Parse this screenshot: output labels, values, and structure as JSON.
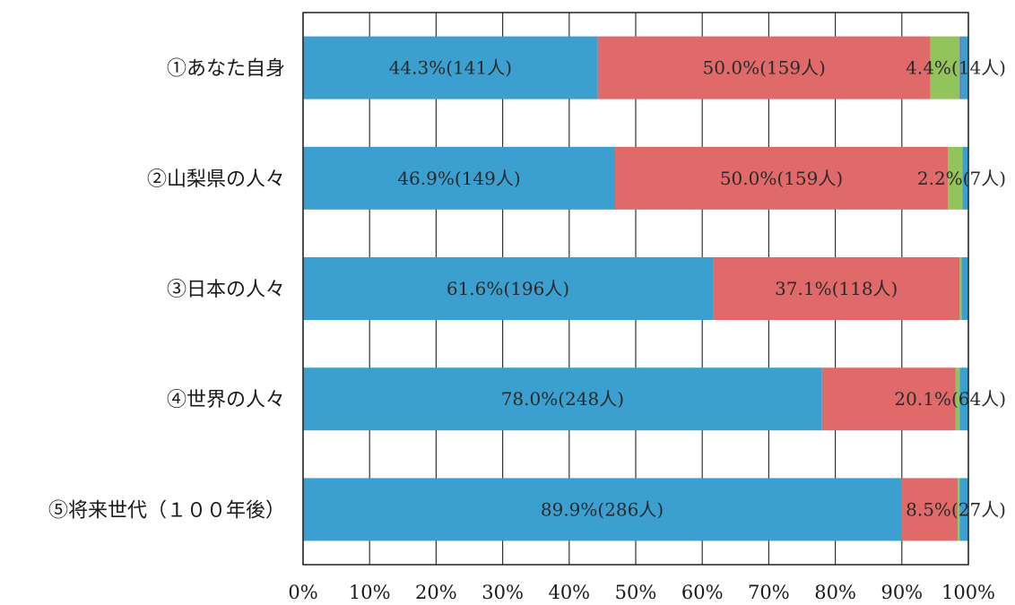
{
  "chart_data": {
    "type": "bar",
    "orientation": "horizontal",
    "stacked": "percent",
    "categories": [
      "①あなた自身",
      "②山梨県の人々",
      "③日本の人々",
      "④世界の人々",
      "⑤将来世代（１００年後）"
    ],
    "series": [
      {
        "color": "#3b9fd0",
        "values": [
          44.3,
          46.9,
          61.6,
          78.0,
          89.9
        ]
      },
      {
        "color": "#e06a6a",
        "values": [
          50.0,
          50.0,
          37.1,
          20.1,
          8.5
        ]
      },
      {
        "color": "#93c45c",
        "values": [
          4.4,
          2.2,
          0.3,
          0.6,
          0.3
        ]
      },
      {
        "color": "#5a7fc0",
        "values": [
          0.3,
          0.0,
          0.0,
          0.0,
          0.0
        ]
      },
      {
        "color": "#3b9fd0",
        "values": [
          1.0,
          0.9,
          1.0,
          1.3,
          1.3
        ]
      }
    ],
    "data_labels": [
      [
        "44.3%(141人)",
        "50.0%(159人)",
        "4.4%(14人)"
      ],
      [
        "46.9%(149人)",
        "50.0%(159人)",
        "2.2%(7人)"
      ],
      [
        "61.6%(196人)",
        "37.1%(118人)"
      ],
      [
        "78.0%(248人)",
        "20.1%(64人)"
      ],
      [
        "89.9%(286人)",
        "8.5%(27人)"
      ]
    ],
    "x_ticks": [
      "0%",
      "10%",
      "20%",
      "30%",
      "40%",
      "50%",
      "60%",
      "70%",
      "80%",
      "90%",
      "100%"
    ],
    "xlim": [
      0,
      100
    ],
    "grid": true,
    "legend": "none"
  }
}
